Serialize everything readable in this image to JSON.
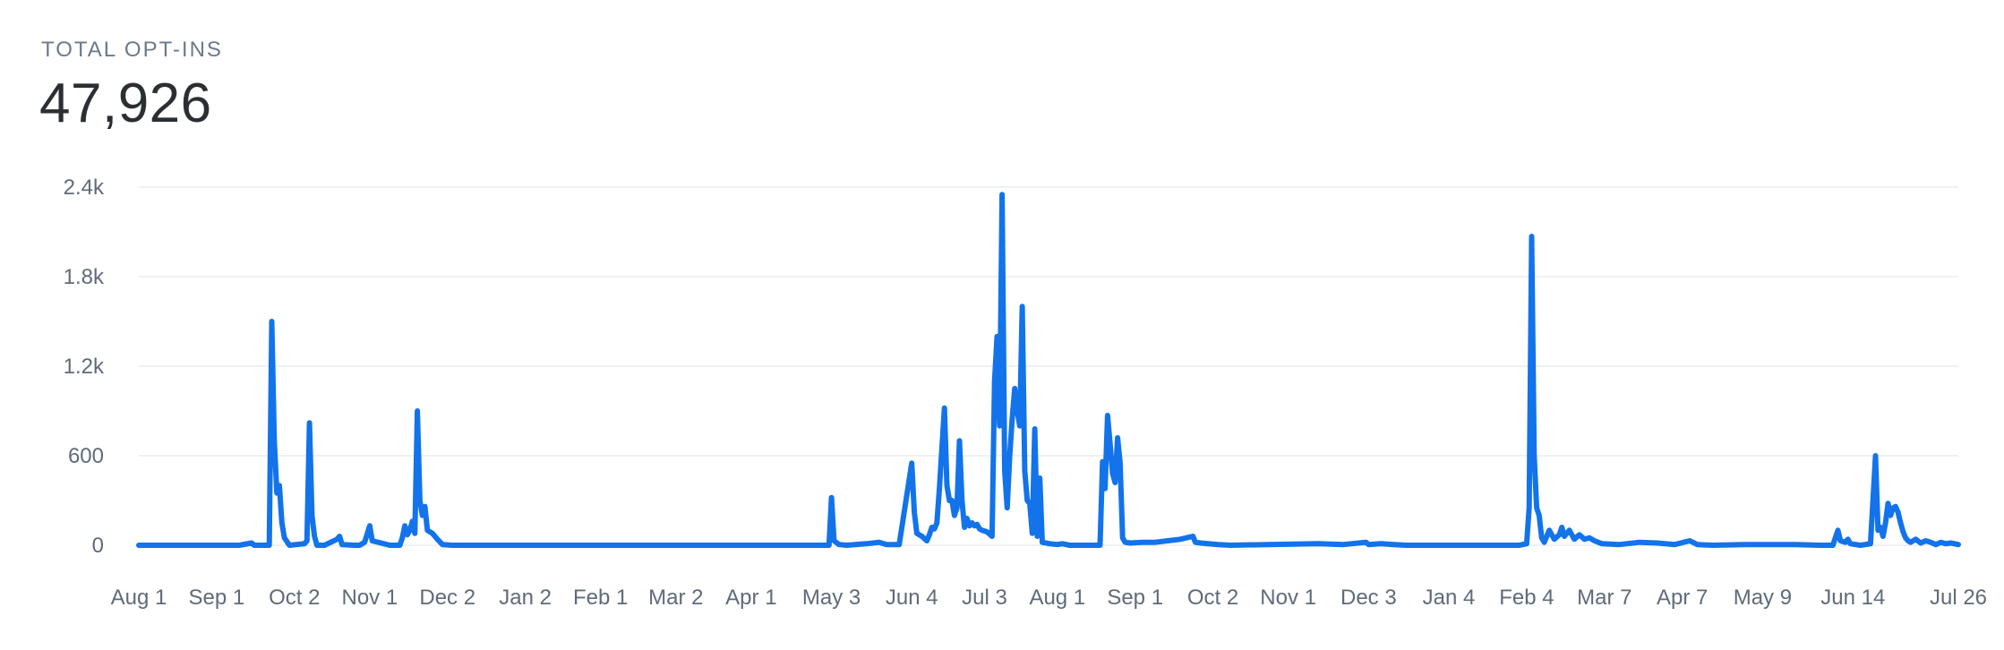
{
  "header": {
    "label": "TOTAL OPT-INS",
    "value": "47,926"
  },
  "colors": {
    "line": "#1273eb",
    "grid": "#eef1f4",
    "tick_text": "#5f6b7a",
    "label_text": "#6b7a8c",
    "value_text": "#2b2f33"
  },
  "chart_data": {
    "type": "line",
    "title": "",
    "xlabel": "",
    "ylabel": "",
    "ylim": [
      0,
      2400
    ],
    "grid": true,
    "legend": "none",
    "yticks": [
      {
        "value": 0,
        "label": "0"
      },
      {
        "value": 600,
        "label": "600"
      },
      {
        "value": 1200,
        "label": "1.2k"
      },
      {
        "value": 1800,
        "label": "1.8k"
      },
      {
        "value": 2400,
        "label": "2.4k"
      }
    ],
    "xticks": [
      {
        "day": 0,
        "label": "Aug 1"
      },
      {
        "day": 31,
        "label": "Sep 1"
      },
      {
        "day": 62,
        "label": "Oct 2"
      },
      {
        "day": 92,
        "label": "Nov 1"
      },
      {
        "day": 123,
        "label": "Dec 2"
      },
      {
        "day": 154,
        "label": "Jan 2"
      },
      {
        "day": 184,
        "label": "Feb 1"
      },
      {
        "day": 214,
        "label": "Mar 2"
      },
      {
        "day": 244,
        "label": "Apr 1"
      },
      {
        "day": 276,
        "label": "May 3"
      },
      {
        "day": 308,
        "label": "Jun 4"
      },
      {
        "day": 337,
        "label": "Jul 3"
      },
      {
        "day": 366,
        "label": "Aug 1"
      },
      {
        "day": 397,
        "label": "Sep 1"
      },
      {
        "day": 428,
        "label": "Oct 2"
      },
      {
        "day": 458,
        "label": "Nov 1"
      },
      {
        "day": 490,
        "label": "Dec 3"
      },
      {
        "day": 522,
        "label": "Jan 4"
      },
      {
        "day": 553,
        "label": "Feb 4"
      },
      {
        "day": 584,
        "label": "Mar 7"
      },
      {
        "day": 615,
        "label": "Apr 7"
      },
      {
        "day": 647,
        "label": "May 9"
      },
      {
        "day": 683,
        "label": "Jun 14"
      },
      {
        "day": 725,
        "label": "Jul 26"
      }
    ],
    "series": [
      {
        "points": [
          [
            0,
            0
          ],
          [
            20,
            0
          ],
          [
            40,
            0
          ],
          [
            45,
            15
          ],
          [
            46,
            0
          ],
          [
            52,
            0
          ],
          [
            53,
            1500
          ],
          [
            54,
            700
          ],
          [
            55,
            350
          ],
          [
            56,
            400
          ],
          [
            57,
            150
          ],
          [
            58,
            50
          ],
          [
            60,
            0
          ],
          [
            66,
            10
          ],
          [
            67,
            30
          ],
          [
            68,
            820
          ],
          [
            69,
            200
          ],
          [
            70,
            60
          ],
          [
            71,
            0
          ],
          [
            74,
            0
          ],
          [
            79,
            40
          ],
          [
            80,
            60
          ],
          [
            81,
            5
          ],
          [
            86,
            0
          ],
          [
            88,
            0
          ],
          [
            90,
            20
          ],
          [
            92,
            130
          ],
          [
            93,
            30
          ],
          [
            100,
            0
          ],
          [
            104,
            0
          ],
          [
            105,
            50
          ],
          [
            106,
            130
          ],
          [
            107,
            70
          ],
          [
            108,
            100
          ],
          [
            109,
            160
          ],
          [
            110,
            80
          ],
          [
            111,
            900
          ],
          [
            112,
            300
          ],
          [
            113,
            200
          ],
          [
            114,
            260
          ],
          [
            115,
            100
          ],
          [
            117,
            80
          ],
          [
            119,
            40
          ],
          [
            121,
            5
          ],
          [
            125,
            0
          ],
          [
            200,
            0
          ],
          [
            275,
            0
          ],
          [
            276,
            320
          ],
          [
            277,
            30
          ],
          [
            279,
            5
          ],
          [
            282,
            0
          ],
          [
            290,
            10
          ],
          [
            295,
            20
          ],
          [
            298,
            5
          ],
          [
            303,
            5
          ],
          [
            308,
            550
          ],
          [
            309,
            220
          ],
          [
            310,
            80
          ],
          [
            312,
            60
          ],
          [
            314,
            30
          ],
          [
            315,
            70
          ],
          [
            316,
            120
          ],
          [
            317,
            110
          ],
          [
            318,
            150
          ],
          [
            319,
            380
          ],
          [
            320,
            650
          ],
          [
            321,
            920
          ],
          [
            322,
            400
          ],
          [
            323,
            300
          ],
          [
            324,
            300
          ],
          [
            325,
            200
          ],
          [
            326,
            250
          ],
          [
            327,
            700
          ],
          [
            328,
            300
          ],
          [
            329,
            120
          ],
          [
            330,
            180
          ],
          [
            331,
            130
          ],
          [
            332,
            150
          ],
          [
            333,
            130
          ],
          [
            334,
            140
          ],
          [
            335,
            110
          ],
          [
            336,
            100
          ],
          [
            338,
            90
          ],
          [
            340,
            60
          ],
          [
            341,
            1100
          ],
          [
            342,
            1400
          ],
          [
            343,
            800
          ],
          [
            344,
            2350
          ],
          [
            345,
            500
          ],
          [
            346,
            250
          ],
          [
            347,
            600
          ],
          [
            348,
            850
          ],
          [
            349,
            1050
          ],
          [
            350,
            900
          ],
          [
            351,
            800
          ],
          [
            352,
            1600
          ],
          [
            353,
            500
          ],
          [
            354,
            300
          ],
          [
            355,
            280
          ],
          [
            356,
            80
          ],
          [
            357,
            780
          ],
          [
            358,
            60
          ],
          [
            359,
            450
          ],
          [
            360,
            20
          ],
          [
            363,
            10
          ],
          [
            366,
            5
          ],
          [
            368,
            10
          ],
          [
            371,
            0
          ],
          [
            383,
            0
          ],
          [
            384,
            560
          ],
          [
            385,
            380
          ],
          [
            386,
            870
          ],
          [
            387,
            680
          ],
          [
            388,
            480
          ],
          [
            389,
            420
          ],
          [
            390,
            720
          ],
          [
            391,
            550
          ],
          [
            392,
            50
          ],
          [
            393,
            20
          ],
          [
            395,
            15
          ],
          [
            400,
            20
          ],
          [
            405,
            20
          ],
          [
            410,
            30
          ],
          [
            415,
            40
          ],
          [
            420,
            60
          ],
          [
            421,
            20
          ],
          [
            423,
            15
          ],
          [
            430,
            5
          ],
          [
            435,
            0
          ],
          [
            450,
            5
          ],
          [
            470,
            10
          ],
          [
            480,
            5
          ],
          [
            489,
            20
          ],
          [
            490,
            5
          ],
          [
            495,
            10
          ],
          [
            500,
            5
          ],
          [
            505,
            0
          ],
          [
            540,
            0
          ],
          [
            550,
            0
          ],
          [
            553,
            10
          ],
          [
            554,
            250
          ],
          [
            555,
            2070
          ],
          [
            556,
            600
          ],
          [
            557,
            250
          ],
          [
            558,
            200
          ],
          [
            559,
            50
          ],
          [
            560,
            20
          ],
          [
            562,
            100
          ],
          [
            564,
            40
          ],
          [
            566,
            70
          ],
          [
            567,
            120
          ],
          [
            568,
            60
          ],
          [
            570,
            100
          ],
          [
            572,
            40
          ],
          [
            574,
            70
          ],
          [
            576,
            40
          ],
          [
            578,
            50
          ],
          [
            580,
            30
          ],
          [
            583,
            10
          ],
          [
            590,
            5
          ],
          [
            598,
            20
          ],
          [
            605,
            15
          ],
          [
            612,
            5
          ],
          [
            618,
            30
          ],
          [
            621,
            5
          ],
          [
            627,
            0
          ],
          [
            640,
            5
          ],
          [
            660,
            5
          ],
          [
            670,
            0
          ],
          [
            675,
            0
          ],
          [
            677,
            100
          ],
          [
            678,
            30
          ],
          [
            680,
            20
          ],
          [
            681,
            40
          ],
          [
            682,
            10
          ],
          [
            686,
            0
          ],
          [
            690,
            10
          ],
          [
            692,
            600
          ],
          [
            693,
            100
          ],
          [
            694,
            120
          ],
          [
            695,
            60
          ],
          [
            696,
            150
          ],
          [
            697,
            280
          ],
          [
            698,
            200
          ],
          [
            699,
            250
          ],
          [
            700,
            260
          ],
          [
            701,
            220
          ],
          [
            702,
            150
          ],
          [
            703,
            90
          ],
          [
            704,
            50
          ],
          [
            705,
            30
          ],
          [
            706,
            20
          ],
          [
            708,
            40
          ],
          [
            710,
            15
          ],
          [
            712,
            30
          ],
          [
            714,
            20
          ],
          [
            716,
            5
          ],
          [
            718,
            20
          ],
          [
            720,
            10
          ],
          [
            722,
            15
          ],
          [
            725,
            5
          ]
        ]
      }
    ]
  }
}
